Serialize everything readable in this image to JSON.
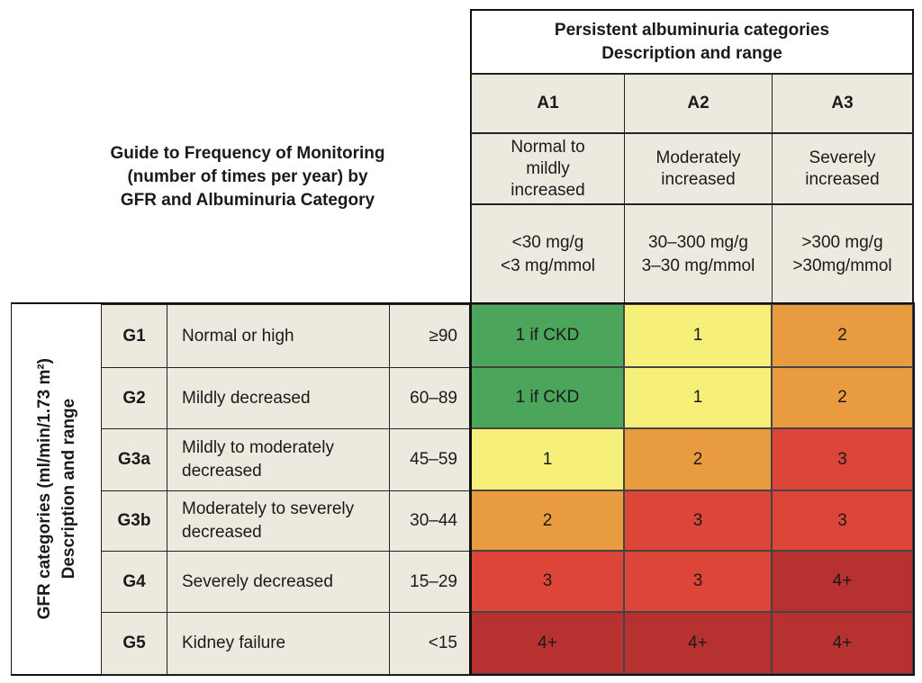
{
  "guide_title": [
    "Guide to Frequency of Monitoring",
    "(number of times per year) by",
    "GFR and Albuminuria Category"
  ],
  "albuminuria_header": [
    "Persistent albuminuria categories",
    "Description  and range"
  ],
  "gfr_header": [
    "GFR categories (ml/min/1.73 m²)",
    "Description and range"
  ],
  "columns": [
    {
      "code": "A1",
      "desc": [
        "Normal to",
        "mildly",
        "increased"
      ],
      "range": [
        "<30 mg/g",
        "<3 mg/mmol"
      ]
    },
    {
      "code": "A2",
      "desc": [
        "Moderately",
        "increased"
      ],
      "range": [
        "30–300 mg/g",
        "3–30 mg/mmol"
      ]
    },
    {
      "code": "A3",
      "desc": [
        "Severely",
        "increased"
      ],
      "range": [
        ">300 mg/g",
        ">30mg/mmol"
      ]
    }
  ],
  "rows": [
    {
      "code": "G1",
      "desc": "Normal or high",
      "range": "≥90"
    },
    {
      "code": "G2",
      "desc": "Mildly decreased",
      "range": "60–89"
    },
    {
      "code": "G3a",
      "desc": "Mildly to moderately decreased",
      "range": "45–59"
    },
    {
      "code": "G3b",
      "desc": "Moderately to severely decreased",
      "range": "30–44"
    },
    {
      "code": "G4",
      "desc": "Severely decreased",
      "range": "15–29"
    },
    {
      "code": "G5",
      "desc": "Kidney failure",
      "range": "<15"
    }
  ],
  "chart_data": {
    "type": "heatmap",
    "x_categories": [
      "A1",
      "A2",
      "A3"
    ],
    "y_categories": [
      "G1",
      "G2",
      "G3a",
      "G3b",
      "G4",
      "G5"
    ],
    "values": [
      [
        "1 if CKD",
        "1",
        "2"
      ],
      [
        "1 if CKD",
        "1",
        "2"
      ],
      [
        "1",
        "2",
        "3"
      ],
      [
        "2",
        "3",
        "3"
      ],
      [
        "3",
        "3",
        "4+"
      ],
      [
        "4+",
        "4+",
        "4+"
      ]
    ],
    "risk_levels": [
      [
        "green",
        "yellow",
        "orange"
      ],
      [
        "green",
        "yellow",
        "orange"
      ],
      [
        "yellow",
        "orange",
        "red"
      ],
      [
        "orange",
        "red",
        "red"
      ],
      [
        "red",
        "red",
        "darkred"
      ],
      [
        "darkred",
        "darkred",
        "darkred"
      ]
    ]
  },
  "colors": {
    "green": "#4ba55a",
    "yellow": "#f6ef79",
    "orange": "#e99b40",
    "red": "#dd4539",
    "darkred": "#b83131",
    "header_bg": "#ece9df"
  }
}
